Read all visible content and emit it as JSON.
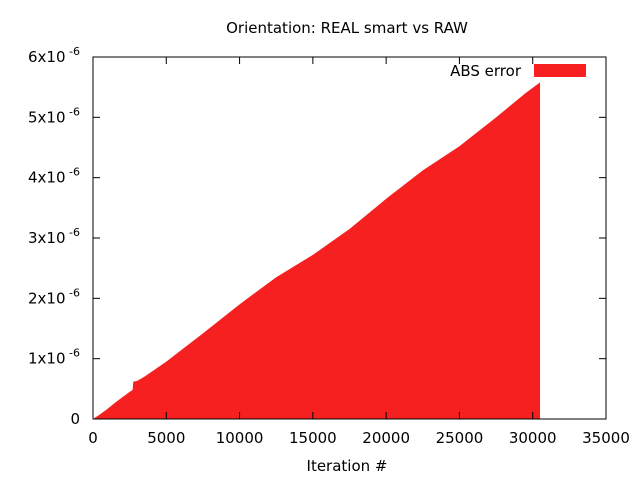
{
  "chart_data": {
    "type": "area",
    "title": "Orientation: REAL smart vs RAW",
    "xlabel": "Iteration #",
    "ylabel": "",
    "xlim": [
      0,
      35000
    ],
    "ylim": [
      0,
      6e-06
    ],
    "x_ticks": [
      0,
      5000,
      10000,
      15000,
      20000,
      25000,
      30000,
      35000
    ],
    "x_tick_labels": [
      "0",
      "5000",
      "10000",
      "15000",
      "20000",
      "25000",
      "30000",
      "35000"
    ],
    "y_ticks": [
      0,
      1e-06,
      2e-06,
      3e-06,
      4e-06,
      5e-06,
      6e-06
    ],
    "y_tick_labels": [
      {
        "base": "0",
        "exp": ""
      },
      {
        "base": "1x10",
        "exp": "-6"
      },
      {
        "base": "2x10",
        "exp": "-6"
      },
      {
        "base": "3x10",
        "exp": "-6"
      },
      {
        "base": "4x10",
        "exp": "-6"
      },
      {
        "base": "5x10",
        "exp": "-6"
      },
      {
        "base": "6x10",
        "exp": "-6"
      }
    ],
    "grid": false,
    "legend_position": "top-right",
    "series": [
      {
        "name": "ABS error",
        "color": "#f62020",
        "x": [
          0,
          500,
          1000,
          1500,
          2000,
          2500,
          2700,
          2750,
          3000,
          3500,
          5000,
          7500,
          10000,
          12500,
          15000,
          17500,
          20000,
          22500,
          25000,
          27500,
          29500,
          30500
        ],
        "y": [
          0.0,
          8e-08,
          1.7e-07,
          2.7e-07,
          3.6e-07,
          4.5e-07,
          4.8e-07,
          6.2e-07,
          6.3e-07,
          7e-07,
          9.5e-07,
          1.42e-06,
          1.9e-06,
          2.35e-06,
          2.72e-06,
          3.15e-06,
          3.65e-06,
          4.12e-06,
          4.52e-06,
          5e-06,
          5.4e-06,
          5.58e-06
        ]
      }
    ]
  }
}
